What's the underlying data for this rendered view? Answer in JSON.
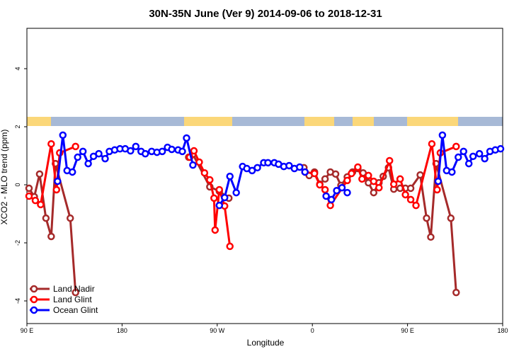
{
  "chart_data": {
    "type": "line",
    "title": "30N-35N June (Ver 9)   2014-09-06 to 2018-12-31",
    "x_label": "Longitude",
    "y_label": "XCO2 - MLO trend (ppm)",
    "xlim": [
      90,
      540
    ],
    "ylim": [
      -4.78,
      5.39
    ],
    "xticks": [
      {
        "value": 90,
        "label": "90 E"
      },
      {
        "value": 180,
        "label": "180"
      },
      {
        "value": 270,
        "label": "90 W"
      },
      {
        "value": 360,
        "label": "0"
      },
      {
        "value": 450,
        "label": "90 E"
      },
      {
        "value": 540,
        "label": "180"
      }
    ],
    "yticks": [
      -4,
      -2,
      0,
      2,
      4
    ],
    "legend": "bottom-left",
    "series": [
      {
        "name": "Land Nadir",
        "color": "#a52a2a",
        "x": [
          92,
          97,
          102,
          108,
          113,
          117,
          131,
          136,
          null,
          243,
          247,
          263,
          272,
          281,
          null,
          352,
          357,
          362,
          367,
          372,
          377,
          382,
          387,
          393,
          398,
          403,
          408,
          413,
          418,
          423,
          427,
          432,
          437,
          443,
          448,
          453,
          462,
          468,
          472,
          477,
          491,
          496
        ],
        "values": [
          -0.12,
          -0.41,
          0.37,
          -1.15,
          -1.78,
          0.73,
          -1.15,
          -3.71,
          null,
          0.95,
          1.05,
          -0.07,
          -0.22,
          -0.46,
          null,
          0.59,
          0.32,
          0.44,
          0.02,
          0.2,
          0.44,
          0.37,
          -0.02,
          0.27,
          0.44,
          0.56,
          0.41,
          0.07,
          -0.27,
          0.07,
          0.29,
          0.59,
          -0.15,
          -0.12,
          -0.12,
          -0.12,
          0.34,
          -1.15,
          -1.8,
          0.73,
          -1.15,
          -3.71
        ]
      },
      {
        "name": "Land Glint",
        "color": "#ff0000",
        "x": [
          92,
          98,
          103,
          113,
          118,
          121,
          136,
          null,
          244,
          248,
          253,
          258,
          263,
          267,
          268,
          272,
          277,
          282,
          null,
          353,
          362,
          367,
          372,
          377,
          393,
          397,
          403,
          407,
          413,
          418,
          423,
          433,
          437,
          443,
          448,
          453,
          458,
          473,
          478,
          481,
          496
        ],
        "values": [
          -0.39,
          -0.54,
          -0.68,
          1.41,
          -0.17,
          1.1,
          1.32,
          null,
          0.95,
          1.17,
          0.78,
          0.41,
          0.17,
          -0.46,
          -1.56,
          -0.17,
          -0.73,
          -2.12,
          null,
          0.44,
          0.39,
          0.0,
          -0.17,
          -0.71,
          0.15,
          0.39,
          0.61,
          0.2,
          0.32,
          0.12,
          -0.1,
          0.83,
          0.02,
          0.2,
          -0.34,
          -0.51,
          -0.71,
          1.41,
          -0.17,
          1.1,
          1.32
        ]
      },
      {
        "name": "Ocean Glint",
        "color": "#0000ff",
        "x": [
          119,
          124,
          128,
          133,
          138,
          143,
          148,
          153,
          158,
          164,
          168,
          173,
          178,
          183,
          188,
          193,
          198,
          202,
          208,
          213,
          218,
          223,
          227,
          233,
          237,
          241,
          247,
          null,
          272,
          277,
          282,
          288,
          294,
          298,
          303,
          308,
          314,
          318,
          324,
          328,
          333,
          338,
          343,
          348,
          353,
          null,
          373,
          378,
          383,
          388,
          393,
          null,
          479,
          483,
          487,
          492,
          498,
          503,
          508,
          512,
          518,
          523,
          528,
          533,
          538
        ],
        "values": [
          0.12,
          1.71,
          0.49,
          0.44,
          0.95,
          1.15,
          0.73,
          0.98,
          1.07,
          0.9,
          1.15,
          1.2,
          1.24,
          1.24,
          1.17,
          1.32,
          1.15,
          1.07,
          1.15,
          1.12,
          1.15,
          1.29,
          1.22,
          1.2,
          1.15,
          1.61,
          0.68,
          null,
          -0.71,
          -0.44,
          0.29,
          -0.27,
          0.63,
          0.56,
          0.49,
          0.59,
          0.76,
          0.76,
          0.76,
          0.71,
          0.63,
          0.66,
          0.56,
          0.61,
          0.44,
          null,
          -0.39,
          -0.51,
          -0.2,
          -0.1,
          -0.27,
          null,
          0.12,
          1.71,
          0.49,
          0.44,
          0.95,
          1.15,
          0.73,
          0.98,
          1.07,
          0.9,
          1.15,
          1.2,
          1.24
        ]
      }
    ]
  }
}
